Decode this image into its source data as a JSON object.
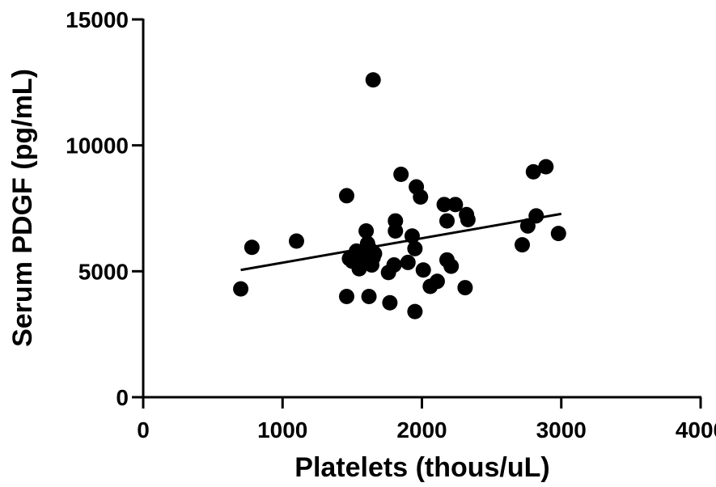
{
  "chart_data": {
    "type": "scatter",
    "title": "",
    "xlabel": "Platelets (thous/uL)",
    "ylabel": "Serum PDGF (pg/mL)",
    "xlim": [
      0,
      4000
    ],
    "ylim": [
      0,
      15000
    ],
    "xticks": [
      "0",
      "1000",
      "2000",
      "3000",
      "4000"
    ],
    "yticks": [
      "0",
      "5000",
      "10000",
      "15000"
    ],
    "grid": false,
    "legend": "none",
    "marker_color": "#000000",
    "series": [
      {
        "points": [
          [
            700,
            4300
          ],
          [
            780,
            5950
          ],
          [
            1100,
            6200
          ],
          [
            1460,
            8000
          ],
          [
            1460,
            4000
          ],
          [
            1480,
            5500
          ],
          [
            1500,
            5400
          ],
          [
            1530,
            5800
          ],
          [
            1550,
            5100
          ],
          [
            1580,
            5600
          ],
          [
            1600,
            6600
          ],
          [
            1610,
            6100
          ],
          [
            1620,
            4000
          ],
          [
            1630,
            5850
          ],
          [
            1640,
            5250
          ],
          [
            1650,
            5550
          ],
          [
            1660,
            5700
          ],
          [
            1650,
            12600
          ],
          [
            1760,
            4950
          ],
          [
            1770,
            3750
          ],
          [
            1800,
            5250
          ],
          [
            1810,
            6600
          ],
          [
            1810,
            7000
          ],
          [
            1850,
            8850
          ],
          [
            1900,
            5350
          ],
          [
            1930,
            6400
          ],
          [
            1950,
            3400
          ],
          [
            1950,
            5900
          ],
          [
            1960,
            8350
          ],
          [
            1990,
            7950
          ],
          [
            2010,
            5050
          ],
          [
            2060,
            4400
          ],
          [
            2110,
            4600
          ],
          [
            2160,
            7650
          ],
          [
            2180,
            7000
          ],
          [
            2180,
            5450
          ],
          [
            2210,
            5200
          ],
          [
            2240,
            7650
          ],
          [
            2310,
            4350
          ],
          [
            2320,
            7250
          ],
          [
            2330,
            7050
          ],
          [
            2720,
            6050
          ],
          [
            2760,
            6800
          ],
          [
            2800,
            8950
          ],
          [
            2820,
            7200
          ],
          [
            2890,
            9150
          ],
          [
            2980,
            6500
          ]
        ]
      }
    ],
    "fit_line": {
      "x": [
        700,
        3000
      ],
      "y": [
        5050,
        7280
      ]
    }
  }
}
